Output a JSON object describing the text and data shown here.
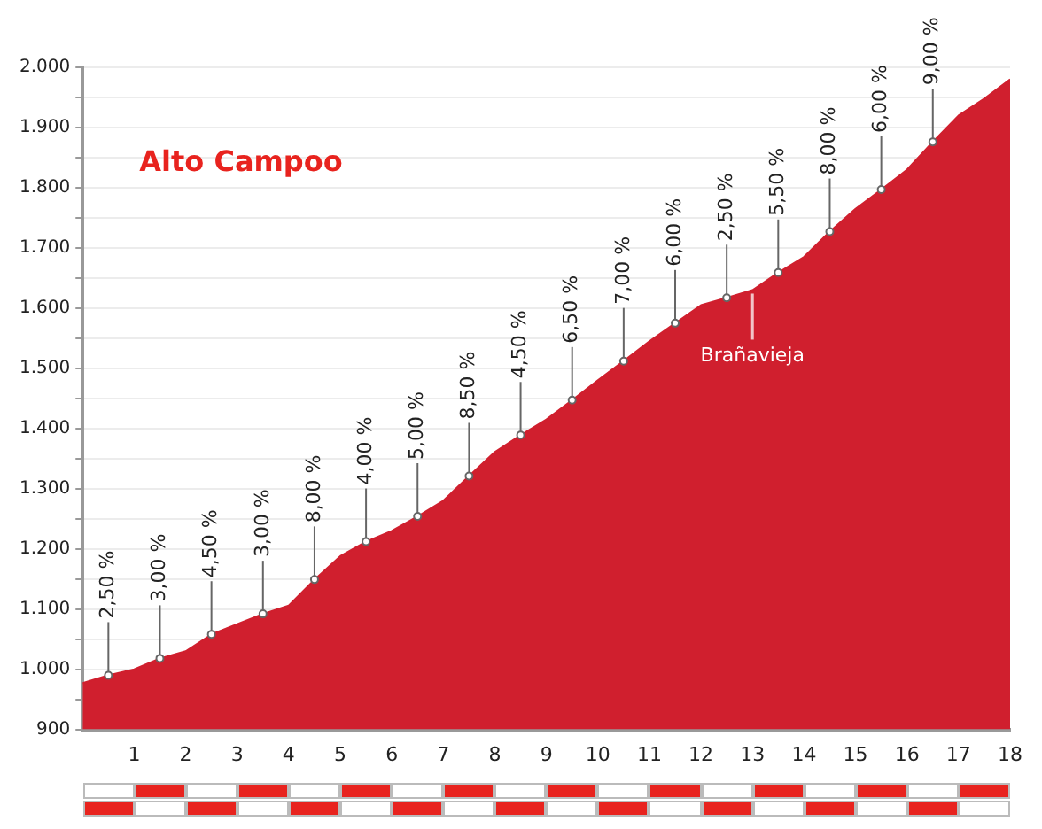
{
  "chart_data": {
    "type": "area",
    "title": "Alto Campoo",
    "x": [
      0,
      0.5,
      1,
      1.5,
      2,
      2.5,
      3,
      3.5,
      4,
      4.5,
      5,
      5.5,
      6,
      6.5,
      7,
      7.5,
      8,
      8.5,
      9,
      9.5,
      10,
      10.5,
      11,
      11.5,
      12,
      12.5,
      13,
      13.5,
      14,
      14.5,
      15,
      15.5,
      16,
      16.5,
      17,
      17.5,
      18
    ],
    "values": [
      977,
      990,
      1000,
      1018,
      1030,
      1058,
      1075,
      1092,
      1106,
      1149,
      1188,
      1212,
      1230,
      1254,
      1280,
      1321,
      1361,
      1389,
      1415,
      1447,
      1480,
      1512,
      1545,
      1575,
      1605,
      1617,
      1630,
      1659,
      1685,
      1727,
      1765,
      1797,
      1830,
      1876,
      1920,
      1948,
      1980
    ],
    "color": "#d01f2e",
    "xlim": [
      0,
      18
    ],
    "xticks": [
      1,
      2,
      3,
      4,
      5,
      6,
      7,
      8,
      9,
      10,
      11,
      12,
      13,
      14,
      15,
      16,
      17,
      18
    ],
    "ylim": [
      900,
      2000
    ],
    "yticks": [
      {
        "value": 900,
        "label": "900"
      },
      {
        "value": 950,
        "label": null
      },
      {
        "value": 1000,
        "label": "1.000"
      },
      {
        "value": 1050,
        "label": null
      },
      {
        "value": 1100,
        "label": "1.100"
      },
      {
        "value": 1150,
        "label": null
      },
      {
        "value": 1200,
        "label": "1.200"
      },
      {
        "value": 1250,
        "label": null
      },
      {
        "value": 1300,
        "label": "1.300"
      },
      {
        "value": 1350,
        "label": null
      },
      {
        "value": 1400,
        "label": "1.400"
      },
      {
        "value": 1450,
        "label": null
      },
      {
        "value": 1500,
        "label": "1.500"
      },
      {
        "value": 1550,
        "label": null
      },
      {
        "value": 1600,
        "label": "1.600"
      },
      {
        "value": 1650,
        "label": null
      },
      {
        "value": 1700,
        "label": "1.700"
      },
      {
        "value": 1750,
        "label": null
      },
      {
        "value": 1800,
        "label": "1.800"
      },
      {
        "value": 1850,
        "label": null
      },
      {
        "value": 1900,
        "label": "1.900"
      },
      {
        "value": 1950,
        "label": null
      },
      {
        "value": 2000,
        "label": "2.000"
      }
    ],
    "grid": "y",
    "legend": false,
    "annotations": [
      {
        "text": "2,50 %",
        "x": 0.5,
        "y": 990
      },
      {
        "text": "3,00 %",
        "x": 1.5,
        "y": 1018
      },
      {
        "text": "4,50 %",
        "x": 2.5,
        "y": 1058
      },
      {
        "text": "3,00 %",
        "x": 3.5,
        "y": 1092
      },
      {
        "text": "8,00 %",
        "x": 4.5,
        "y": 1149
      },
      {
        "text": "4,00 %",
        "x": 5.5,
        "y": 1212
      },
      {
        "text": "5,00 %",
        "x": 6.5,
        "y": 1254
      },
      {
        "text": "8,50 %",
        "x": 7.5,
        "y": 1321
      },
      {
        "text": "4,50 %",
        "x": 8.5,
        "y": 1389
      },
      {
        "text": "6,50 %",
        "x": 9.5,
        "y": 1447
      },
      {
        "text": "7,00 %",
        "x": 10.5,
        "y": 1512
      },
      {
        "text": "6,00 %",
        "x": 11.5,
        "y": 1575
      },
      {
        "text": "2,50 %",
        "x": 12.5,
        "y": 1617
      },
      {
        "text": "5,50 %",
        "x": 13.5,
        "y": 1659
      },
      {
        "text": "8,00 %",
        "x": 14.5,
        "y": 1727
      },
      {
        "text": "6,00 %",
        "x": 15.5,
        "y": 1797
      },
      {
        "text": "9,00 %",
        "x": 16.5,
        "y": 1876
      },
      {
        "text": "Brañavieja",
        "x": 13,
        "y": 1630
      }
    ]
  }
}
